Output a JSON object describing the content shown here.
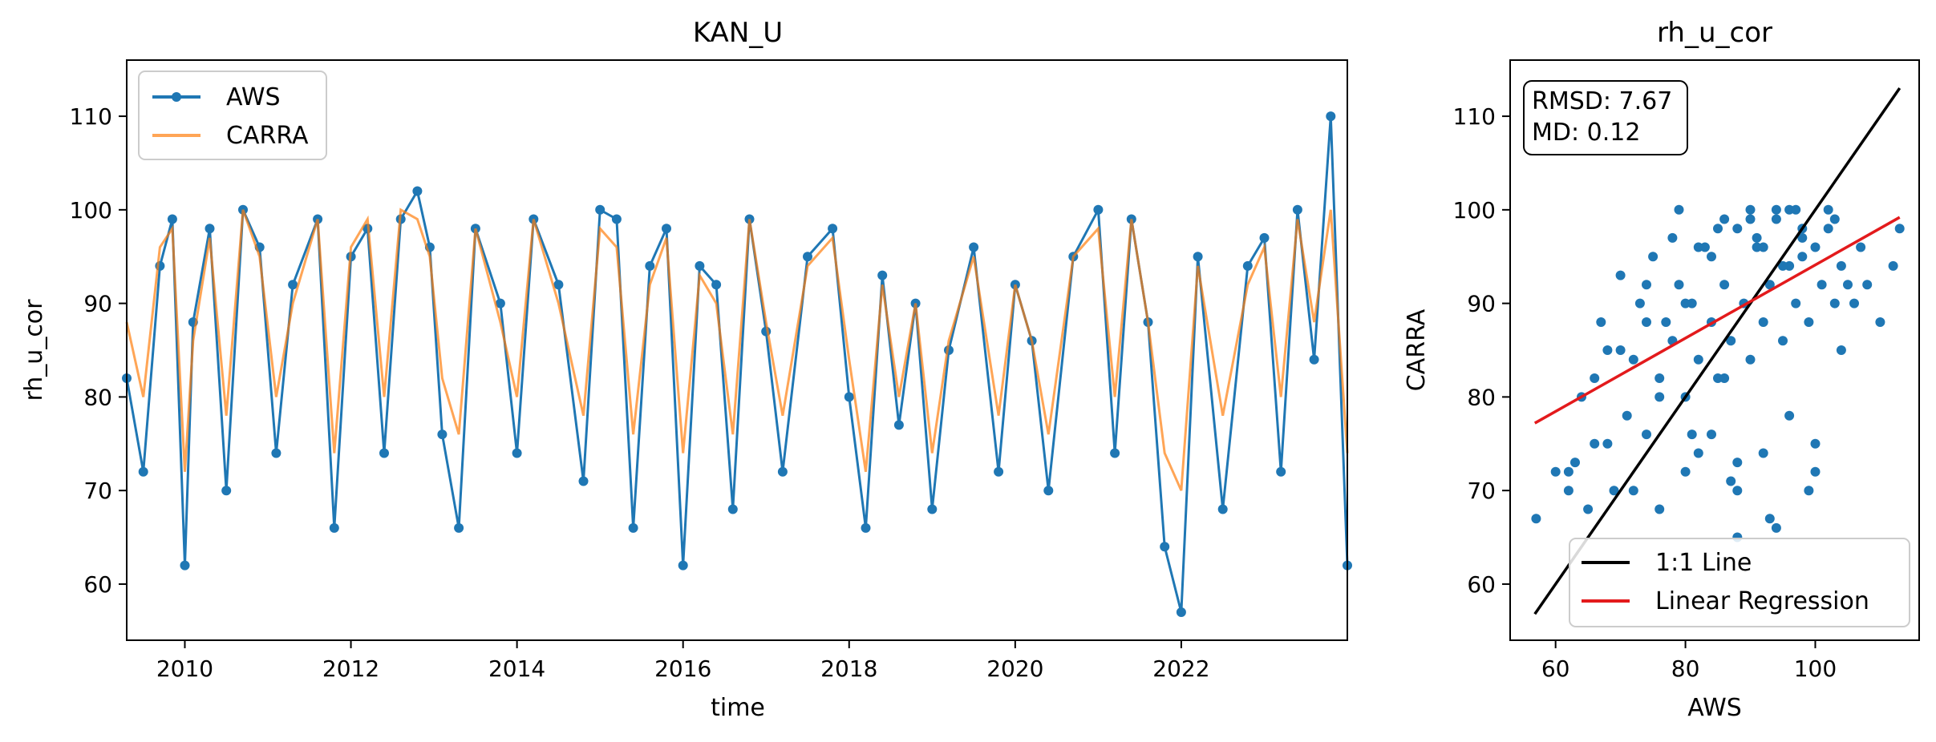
{
  "colors": {
    "aws": "#1f77b4",
    "carra": "#ff7f0e",
    "one_to_one": "#000000",
    "regression": "#e31a1c"
  },
  "chart_data": [
    {
      "type": "line",
      "title": "KAN_U",
      "xlabel": "time",
      "ylabel": "rh_u_cor",
      "xlim": [
        2009.3,
        2024.0
      ],
      "ylim": [
        54,
        116
      ],
      "xticks": [
        2010,
        2012,
        2014,
        2016,
        2018,
        2020,
        2022
      ],
      "xtick_labels": [
        "2010",
        "2012",
        "2014",
        "2016",
        "2018",
        "2020",
        "2022"
      ],
      "yticks": [
        60,
        70,
        80,
        90,
        100,
        110
      ],
      "ytick_labels": [
        "60",
        "70",
        "80",
        "90",
        "100",
        "110"
      ],
      "legend_position": "top-left",
      "series": [
        {
          "name": "AWS",
          "marker": "circle",
          "x": [
            2009.3,
            2009.5,
            2009.7,
            2009.85,
            2010.0,
            2010.1,
            2010.3,
            2010.5,
            2010.7,
            2010.9,
            2011.1,
            2011.3,
            2011.6,
            2011.8,
            2012.0,
            2012.2,
            2012.4,
            2012.6,
            2012.8,
            2012.95,
            2013.1,
            2013.3,
            2013.5,
            2013.8,
            2014.0,
            2014.2,
            2014.5,
            2014.8,
            2015.0,
            2015.2,
            2015.4,
            2015.6,
            2015.8,
            2016.0,
            2016.2,
            2016.4,
            2016.6,
            2016.8,
            2017.0,
            2017.2,
            2017.5,
            2017.8,
            2018.0,
            2018.2,
            2018.4,
            2018.6,
            2018.8,
            2019.0,
            2019.2,
            2019.5,
            2019.8,
            2020.0,
            2020.2,
            2020.4,
            2020.7,
            2021.0,
            2021.2,
            2021.4,
            2021.6,
            2021.8,
            2022.0,
            2022.2,
            2022.5,
            2022.8,
            2023.0,
            2023.2,
            2023.4,
            2023.6,
            2023.8,
            2024.0
          ],
          "y": [
            82,
            72,
            94,
            99,
            62,
            88,
            98,
            70,
            100,
            96,
            74,
            92,
            99,
            66,
            95,
            98,
            74,
            99,
            102,
            96,
            76,
            66,
            98,
            90,
            74,
            99,
            92,
            71,
            100,
            99,
            66,
            94,
            98,
            62,
            94,
            92,
            68,
            99,
            87,
            72,
            95,
            98,
            80,
            66,
            93,
            77,
            90,
            68,
            85,
            96,
            72,
            92,
            86,
            70,
            95,
            100,
            74,
            99,
            88,
            64,
            57,
            95,
            68,
            94,
            97,
            72,
            100,
            84,
            110,
            62
          ]
        },
        {
          "name": "CARRA",
          "marker": "none",
          "x": [
            2009.3,
            2009.5,
            2009.7,
            2009.85,
            2010.0,
            2010.1,
            2010.3,
            2010.5,
            2010.7,
            2010.9,
            2011.1,
            2011.3,
            2011.6,
            2011.8,
            2012.0,
            2012.2,
            2012.4,
            2012.6,
            2012.8,
            2012.95,
            2013.1,
            2013.3,
            2013.5,
            2013.8,
            2014.0,
            2014.2,
            2014.5,
            2014.8,
            2015.0,
            2015.2,
            2015.4,
            2015.6,
            2015.8,
            2016.0,
            2016.2,
            2016.4,
            2016.6,
            2016.8,
            2017.0,
            2017.2,
            2017.5,
            2017.8,
            2018.0,
            2018.2,
            2018.4,
            2018.6,
            2018.8,
            2019.0,
            2019.2,
            2019.5,
            2019.8,
            2020.0,
            2020.2,
            2020.4,
            2020.7,
            2021.0,
            2021.2,
            2021.4,
            2021.6,
            2021.8,
            2022.0,
            2022.2,
            2022.5,
            2022.8,
            2023.0,
            2023.2,
            2023.4,
            2023.6,
            2023.8,
            2024.0
          ],
          "y": [
            88,
            80,
            96,
            98,
            72,
            86,
            97,
            78,
            100,
            95,
            80,
            90,
            99,
            74,
            96,
            99,
            80,
            100,
            99,
            95,
            82,
            76,
            98,
            88,
            80,
            99,
            90,
            78,
            98,
            96,
            76,
            92,
            97,
            74,
            93,
            90,
            76,
            99,
            88,
            78,
            94,
            97,
            84,
            72,
            92,
            80,
            90,
            74,
            86,
            95,
            78,
            92,
            86,
            76,
            95,
            98,
            80,
            99,
            88,
            74,
            70,
            94,
            78,
            92,
            96,
            80,
            99,
            88,
            100,
            74
          ]
        }
      ]
    },
    {
      "type": "scatter",
      "title": "rh_u_cor",
      "xlabel": "AWS",
      "ylabel": "CARRA",
      "xlim": [
        53,
        116
      ],
      "ylim": [
        54,
        116
      ],
      "xticks": [
        60,
        80,
        100
      ],
      "xtick_labels": [
        "60",
        "80",
        "100"
      ],
      "yticks": [
        60,
        70,
        80,
        90,
        100,
        110
      ],
      "ytick_labels": [
        "60",
        "70",
        "80",
        "90",
        "100",
        "110"
      ],
      "annotation": {
        "rmsd": "RMSD: 7.67",
        "md": "MD: 0.12"
      },
      "legend_position": "bottom-right",
      "lines": [
        {
          "name": "1:1 Line",
          "x": [
            56.8,
            113
          ],
          "y": [
            56.8,
            113
          ]
        },
        {
          "name": "Linear Regression",
          "x": [
            56.8,
            113
          ],
          "y": [
            77.2,
            99.2
          ]
        }
      ],
      "points": {
        "x": [
          57,
          60,
          62,
          63,
          64,
          65,
          66,
          67,
          68,
          69,
          70,
          71,
          72,
          73,
          74,
          75,
          76,
          77,
          78,
          79,
          80,
          81,
          82,
          83,
          84,
          85,
          86,
          87,
          88,
          89,
          90,
          91,
          92,
          93,
          94,
          95,
          96,
          97,
          98,
          99,
          100,
          101,
          102,
          103,
          104,
          105,
          106,
          107,
          108,
          110,
          112,
          113,
          66,
          70,
          74,
          78,
          82,
          86,
          90,
          94,
          98,
          102,
          72,
          76,
          80,
          84,
          88,
          92,
          96,
          100,
          104,
          68,
          74,
          80,
          86,
          92,
          98,
          76,
          82,
          88,
          94,
          100,
          84,
          90,
          96,
          62,
          79,
          85,
          91,
          97,
          103,
          88,
          93,
          99,
          81,
          87,
          95
        ],
        "y": [
          67,
          72,
          70,
          73,
          80,
          68,
          82,
          88,
          75,
          70,
          85,
          78,
          84,
          90,
          76,
          95,
          82,
          88,
          86,
          92,
          80,
          90,
          84,
          96,
          88,
          82,
          92,
          86,
          98,
          90,
          84,
          96,
          88,
          92,
          100,
          86,
          94,
          90,
          98,
          88,
          96,
          92,
          100,
          90,
          94,
          92,
          90,
          96,
          92,
          88,
          94,
          98,
          75,
          93,
          92,
          97,
          96,
          99,
          100,
          99,
          97,
          98,
          70,
          80,
          72,
          76,
          73,
          74,
          78,
          72,
          85,
          85,
          88,
          90,
          82,
          96,
          95,
          68,
          74,
          70,
          66,
          75,
          95,
          99,
          100,
          72,
          100,
          98,
          97,
          100,
          99,
          65,
          67,
          70,
          76,
          71,
          94
        ]
      }
    }
  ]
}
